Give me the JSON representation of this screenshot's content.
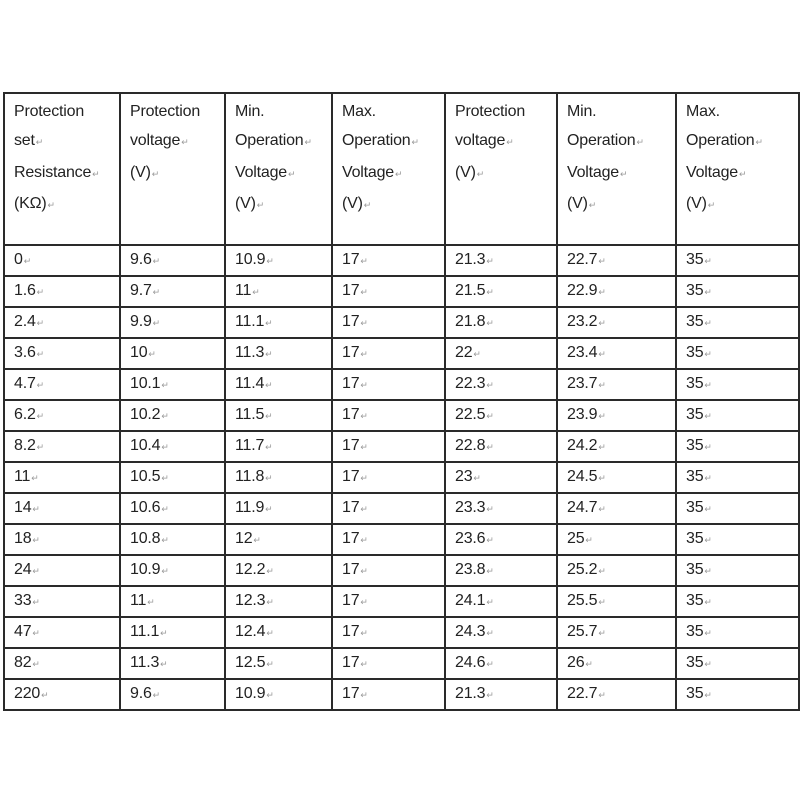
{
  "table": {
    "headers": [
      [
        "Protection",
        "set",
        "Resistance",
        "(KΩ)"
      ],
      [
        "Protection",
        "voltage",
        "(V)"
      ],
      [
        "Min.",
        "Operation",
        "Voltage",
        "(V)"
      ],
      [
        "Max.",
        "Operation",
        "Voltage",
        "(V)"
      ],
      [
        "Protection",
        "voltage",
        "(V)"
      ],
      [
        "Min.",
        "Operation",
        "Voltage",
        "(V)"
      ],
      [
        "Max.",
        "Operation",
        "Voltage",
        "(V)"
      ]
    ],
    "rows": [
      [
        "0",
        "9.6",
        "10.9",
        "17",
        "21.3",
        "22.7",
        "35"
      ],
      [
        "1.6",
        "9.7",
        "11",
        "17",
        "21.5",
        "22.9",
        "35"
      ],
      [
        "2.4",
        "9.9",
        "11.1",
        "17",
        "21.8",
        "23.2",
        "35"
      ],
      [
        "3.6",
        "10",
        "11.3",
        "17",
        "22",
        "23.4",
        "35"
      ],
      [
        "4.7",
        "10.1",
        "11.4",
        "17",
        "22.3",
        "23.7",
        "35"
      ],
      [
        "6.2",
        "10.2",
        "11.5",
        "17",
        "22.5",
        "23.9",
        "35"
      ],
      [
        "8.2",
        "10.4",
        "11.7",
        "17",
        "22.8",
        "24.2",
        "35"
      ],
      [
        "11",
        "10.5",
        "11.8",
        "17",
        "23",
        "24.5",
        "35"
      ],
      [
        "14",
        "10.6",
        "11.9",
        "17",
        "23.3",
        "24.7",
        "35"
      ],
      [
        "18",
        "10.8",
        "12",
        "17",
        "23.6",
        "25",
        "35"
      ],
      [
        "24",
        "10.9",
        "12.2",
        "17",
        "23.8",
        "25.2",
        "35"
      ],
      [
        "33",
        "11",
        "12.3",
        "17",
        "24.1",
        "25.5",
        "35"
      ],
      [
        "47",
        "11.1",
        "12.4",
        "17",
        "24.3",
        "25.7",
        "35"
      ],
      [
        "82",
        "11.3",
        "12.5",
        "17",
        "24.6",
        "26",
        "35"
      ],
      [
        "220",
        "9.6",
        "10.9",
        "17",
        "21.3",
        "22.7",
        "35"
      ]
    ]
  }
}
